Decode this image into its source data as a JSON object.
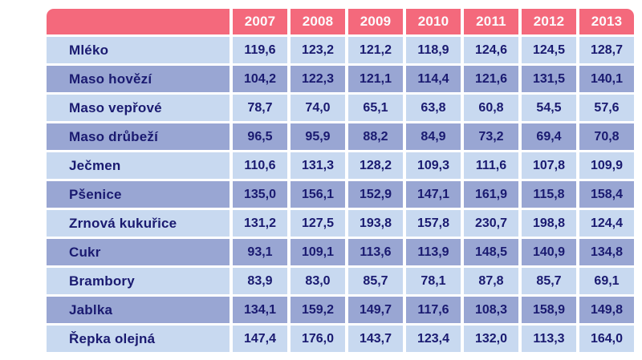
{
  "table": {
    "corner_label": "",
    "years": [
      "2007",
      "2008",
      "2009",
      "2010",
      "2011",
      "2012",
      "2013"
    ],
    "rows": [
      {
        "label": "Mléko",
        "values": [
          "119,6",
          "123,2",
          "121,2",
          "118,9",
          "124,6",
          "124,5",
          "128,7"
        ]
      },
      {
        "label": "Maso hovězí",
        "values": [
          "104,2",
          "122,3",
          "121,1",
          "114,4",
          "121,6",
          "131,5",
          "140,1"
        ]
      },
      {
        "label": "Maso vepřové",
        "values": [
          "78,7",
          "74,0",
          "65,1",
          "63,8",
          "60,8",
          "54,5",
          "57,6"
        ]
      },
      {
        "label": "Maso drůbeží",
        "values": [
          "96,5",
          "95,9",
          "88,2",
          "84,9",
          "73,2",
          "69,4",
          "70,8"
        ]
      },
      {
        "label": "Ječmen",
        "values": [
          "110,6",
          "131,3",
          "128,2",
          "109,3",
          "111,6",
          "107,8",
          "109,9"
        ]
      },
      {
        "label": "Pšenice",
        "values": [
          "135,0",
          "156,1",
          "152,9",
          "147,1",
          "161,9",
          "115,8",
          "158,4"
        ]
      },
      {
        "label": "Zrnová kukuřice",
        "values": [
          "131,2",
          "127,5",
          "193,8",
          "157,8",
          "230,7",
          "198,8",
          "124,4"
        ]
      },
      {
        "label": "Cukr",
        "values": [
          "93,1",
          "109,1",
          "113,6",
          "113,9",
          "148,5",
          "140,9",
          "134,8"
        ]
      },
      {
        "label": "Brambory",
        "values": [
          "83,9",
          "83,0",
          "85,7",
          "78,1",
          "87,8",
          "85,7",
          "69,1"
        ]
      },
      {
        "label": "Jablka",
        "values": [
          "134,1",
          "159,2",
          "149,7",
          "117,6",
          "108,3",
          "158,9",
          "149,8"
        ]
      },
      {
        "label": "Řepka olejná",
        "values": [
          "147,4",
          "176,0",
          "143,7",
          "123,4",
          "132,0",
          "113,3",
          "164,0"
        ]
      }
    ]
  },
  "colors": {
    "header_background": "#F4697C",
    "header_text": "#FCFBFD",
    "row_light": "#C8D9F0",
    "row_dark": "#99A6D3",
    "cell_text": "#1A1A70",
    "page_background": "#FFFFFF"
  },
  "chart_data": {
    "type": "table",
    "title": "",
    "categories": [
      "2007",
      "2008",
      "2009",
      "2010",
      "2011",
      "2012",
      "2013"
    ],
    "series": [
      {
        "name": "Mléko",
        "values": [
          119.6,
          123.2,
          121.2,
          118.9,
          124.6,
          124.5,
          128.7
        ]
      },
      {
        "name": "Maso hovězí",
        "values": [
          104.2,
          122.3,
          121.1,
          114.4,
          121.6,
          131.5,
          140.1
        ]
      },
      {
        "name": "Maso vepřové",
        "values": [
          78.7,
          74.0,
          65.1,
          63.8,
          60.8,
          54.5,
          57.6
        ]
      },
      {
        "name": "Maso drůbeží",
        "values": [
          96.5,
          95.9,
          88.2,
          84.9,
          73.2,
          69.4,
          70.8
        ]
      },
      {
        "name": "Ječmen",
        "values": [
          110.6,
          131.3,
          128.2,
          109.3,
          111.6,
          107.8,
          109.9
        ]
      },
      {
        "name": "Pšenice",
        "values": [
          135.0,
          156.1,
          152.9,
          147.1,
          161.9,
          115.8,
          158.4
        ]
      },
      {
        "name": "Zrnová kukuřice",
        "values": [
          131.2,
          127.5,
          193.8,
          157.8,
          230.7,
          198.8,
          124.4
        ]
      },
      {
        "name": "Cukr",
        "values": [
          93.1,
          109.1,
          113.6,
          113.9,
          148.5,
          140.9,
          134.8
        ]
      },
      {
        "name": "Brambory",
        "values": [
          83.9,
          83.0,
          85.7,
          78.1,
          87.8,
          85.7,
          69.1
        ]
      },
      {
        "name": "Jablka",
        "values": [
          134.1,
          159.2,
          149.7,
          117.6,
          108.3,
          158.9,
          149.8
        ]
      },
      {
        "name": "Řepka olejná",
        "values": [
          147.4,
          176.0,
          143.7,
          123.4,
          132.0,
          113.3,
          164.0
        ]
      }
    ]
  }
}
